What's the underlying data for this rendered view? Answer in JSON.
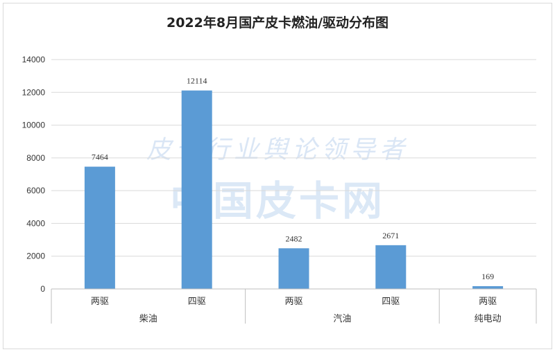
{
  "chart_data": {
    "type": "bar",
    "title": "2022年8月国产皮卡燃油/驱动分布图",
    "categories": [
      "两驱",
      "四驱",
      "两驱",
      "四驱",
      "两驱"
    ],
    "groups": [
      {
        "label": "柴油",
        "span": 2
      },
      {
        "label": "汽油",
        "span": 2
      },
      {
        "label": "纯电动",
        "span": 1
      }
    ],
    "values": [
      7464,
      12114,
      2482,
      2671,
      169
    ],
    "ylim": [
      0,
      14000
    ],
    "yticks": [
      0,
      2000,
      4000,
      6000,
      8000,
      10000,
      12000,
      14000
    ],
    "grid": true,
    "bar_color": "#5b9bd5",
    "watermark": {
      "line1": "皮卡行业舆论领导者",
      "line2": "中国皮卡网"
    }
  }
}
